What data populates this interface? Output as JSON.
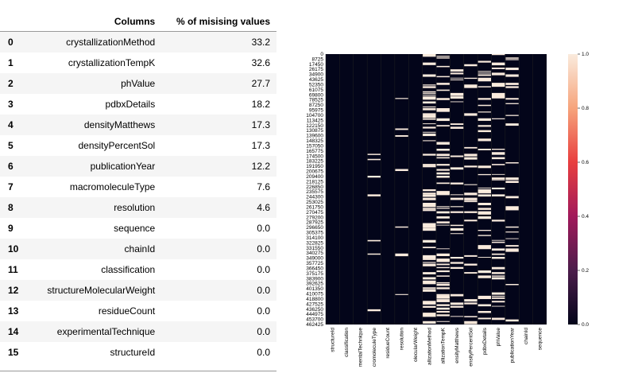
{
  "table": {
    "headers": {
      "index": "",
      "columns": "Columns",
      "missing": "% of misising values"
    },
    "rows": [
      {
        "idx": "0",
        "column": "crystallizationMethod",
        "pct": "33.2"
      },
      {
        "idx": "1",
        "column": "crystallizationTempK",
        "pct": "32.6"
      },
      {
        "idx": "2",
        "column": "phValue",
        "pct": "27.7"
      },
      {
        "idx": "3",
        "column": "pdbxDetails",
        "pct": "18.2"
      },
      {
        "idx": "4",
        "column": "densityMatthews",
        "pct": "17.3"
      },
      {
        "idx": "5",
        "column": "densityPercentSol",
        "pct": "17.3"
      },
      {
        "idx": "6",
        "column": "publicationYear",
        "pct": "12.2"
      },
      {
        "idx": "7",
        "column": "macromoleculeType",
        "pct": "7.6"
      },
      {
        "idx": "8",
        "column": "resolution",
        "pct": "4.6"
      },
      {
        "idx": "9",
        "column": "sequence",
        "pct": "0.0"
      },
      {
        "idx": "10",
        "column": "chainId",
        "pct": "0.0"
      },
      {
        "idx": "11",
        "column": "classification",
        "pct": "0.0"
      },
      {
        "idx": "12",
        "column": "structureMolecularWeight",
        "pct": "0.0"
      },
      {
        "idx": "13",
        "column": "residueCount",
        "pct": "0.0"
      },
      {
        "idx": "14",
        "column": "experimentalTechnique",
        "pct": "0.0"
      },
      {
        "idx": "15",
        "column": "structureId",
        "pct": "0.0"
      }
    ]
  },
  "chart_data": {
    "type": "heatmap",
    "x_labels": [
      "structureId",
      "classification",
      "mentalTechnique",
      "cromoleculeType",
      "residueCount",
      "resolution",
      "olecularWeight",
      "allizationMethod",
      "allizationTempK",
      "ensityMatthews",
      "ensityPercentSol",
      "pdbxDetails",
      "phValue",
      "publicationYear",
      "chainId",
      "sequence"
    ],
    "y_labels": [
      "0",
      "8725",
      "17450",
      "26175",
      "34900",
      "43625",
      "52350",
      "61075",
      "69800",
      "78525",
      "87250",
      "95975",
      "104700",
      "113425",
      "122150",
      "130875",
      "139600",
      "148325",
      "157050",
      "165775",
      "174500",
      "183225",
      "191950",
      "200675",
      "209400",
      "218125",
      "226850",
      "235575",
      "244300",
      "253025",
      "261750",
      "270475",
      "279200",
      "287925",
      "296650",
      "305375",
      "314100",
      "322825",
      "331550",
      "340275",
      "349000",
      "357725",
      "366450",
      "375175",
      "383900",
      "392625",
      "401350",
      "410075",
      "418800",
      "427525",
      "436250",
      "444975",
      "453700",
      "462425"
    ],
    "missing_fraction_by_column": [
      0.0,
      0.0,
      0.0,
      0.076,
      0.0,
      0.046,
      0.0,
      0.332,
      0.326,
      0.173,
      0.173,
      0.182,
      0.277,
      0.122,
      0.0,
      0.0
    ],
    "colorbar": {
      "min": 0.0,
      "max": 1.0,
      "ticks": [
        "0.0",
        "0.2",
        "0.4",
        "0.6",
        "0.8",
        "1.0"
      ]
    },
    "colors": {
      "low": "#03051a",
      "high": "#faebdd"
    }
  }
}
